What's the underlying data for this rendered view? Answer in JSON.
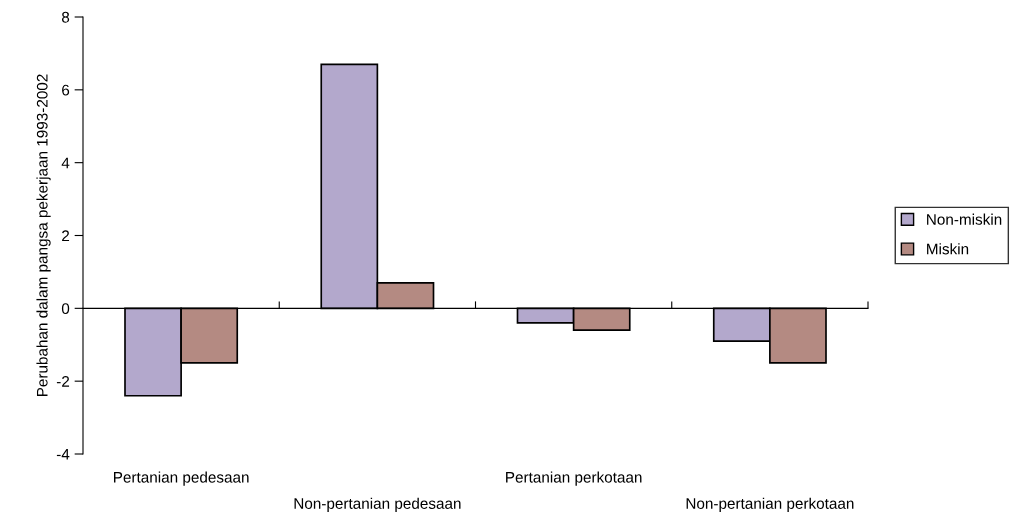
{
  "chart_data": {
    "type": "bar",
    "ylabel": "Perubahan dalam pangsa pekerjaan 1993-2002",
    "categories": [
      "Pertanian pedesaan",
      "Non-pertanian pedesaan",
      "Pertanian perkotaan",
      "Non-pertanian perkotaan"
    ],
    "series": [
      {
        "name": "Non-miskin",
        "color": "#b3a8cc",
        "values": [
          -2.4,
          6.7,
          -0.4,
          -0.9
        ]
      },
      {
        "name": "Miskin",
        "color": "#b48a82",
        "values": [
          -1.5,
          0.7,
          -0.6,
          -1.5
        ]
      }
    ],
    "ylim": [
      -4,
      8
    ],
    "yticks": [
      -4,
      -2,
      0,
      2,
      4,
      6,
      8
    ],
    "legend": "right"
  }
}
